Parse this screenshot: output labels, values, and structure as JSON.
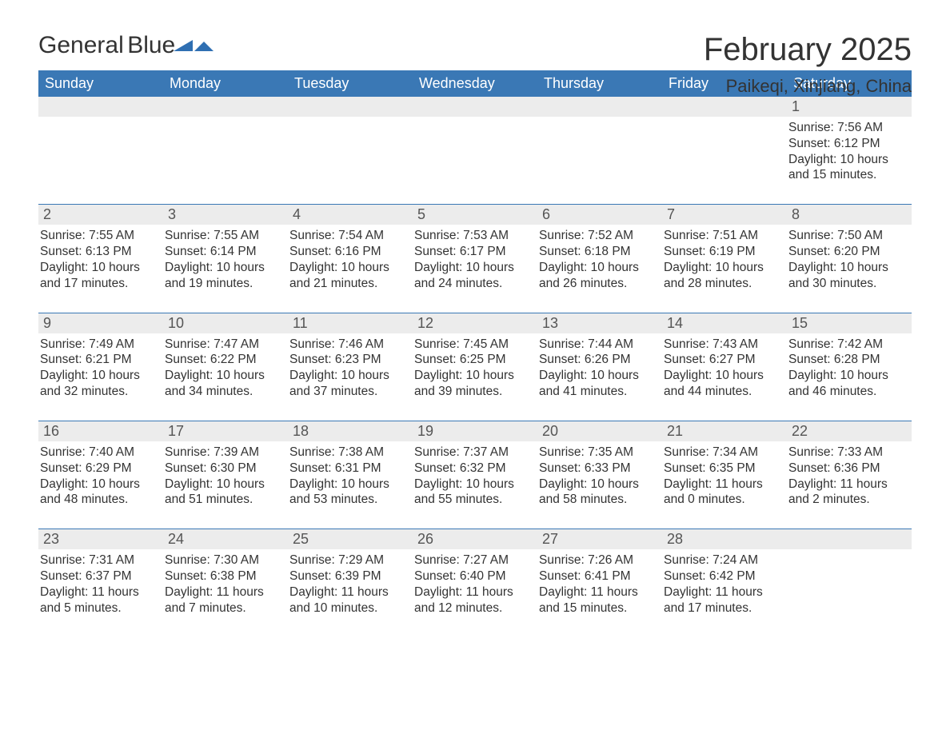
{
  "brand": {
    "general": "General",
    "blue": "Blue"
  },
  "title": "February 2025",
  "location": "Paikeqi, Xinjiang, China",
  "colors": {
    "header_bg": "#3a78b5",
    "header_fg": "#ffffff",
    "daynum_bg": "#ececec",
    "rule": "#3a78b5",
    "logo_blue": "#2f6fb2",
    "text": "#333333"
  },
  "columns": [
    "Sunday",
    "Monday",
    "Tuesday",
    "Wednesday",
    "Thursday",
    "Friday",
    "Saturday"
  ],
  "weeks": [
    {
      "days": [
        null,
        null,
        null,
        null,
        null,
        null,
        {
          "n": "1",
          "sunrise": "Sunrise: 7:56 AM",
          "sunset": "Sunset: 6:12 PM",
          "daylight": "Daylight: 10 hours and 15 minutes."
        }
      ]
    },
    {
      "days": [
        {
          "n": "2",
          "sunrise": "Sunrise: 7:55 AM",
          "sunset": "Sunset: 6:13 PM",
          "daylight": "Daylight: 10 hours and 17 minutes."
        },
        {
          "n": "3",
          "sunrise": "Sunrise: 7:55 AM",
          "sunset": "Sunset: 6:14 PM",
          "daylight": "Daylight: 10 hours and 19 minutes."
        },
        {
          "n": "4",
          "sunrise": "Sunrise: 7:54 AM",
          "sunset": "Sunset: 6:16 PM",
          "daylight": "Daylight: 10 hours and 21 minutes."
        },
        {
          "n": "5",
          "sunrise": "Sunrise: 7:53 AM",
          "sunset": "Sunset: 6:17 PM",
          "daylight": "Daylight: 10 hours and 24 minutes."
        },
        {
          "n": "6",
          "sunrise": "Sunrise: 7:52 AM",
          "sunset": "Sunset: 6:18 PM",
          "daylight": "Daylight: 10 hours and 26 minutes."
        },
        {
          "n": "7",
          "sunrise": "Sunrise: 7:51 AM",
          "sunset": "Sunset: 6:19 PM",
          "daylight": "Daylight: 10 hours and 28 minutes."
        },
        {
          "n": "8",
          "sunrise": "Sunrise: 7:50 AM",
          "sunset": "Sunset: 6:20 PM",
          "daylight": "Daylight: 10 hours and 30 minutes."
        }
      ]
    },
    {
      "days": [
        {
          "n": "9",
          "sunrise": "Sunrise: 7:49 AM",
          "sunset": "Sunset: 6:21 PM",
          "daylight": "Daylight: 10 hours and 32 minutes."
        },
        {
          "n": "10",
          "sunrise": "Sunrise: 7:47 AM",
          "sunset": "Sunset: 6:22 PM",
          "daylight": "Daylight: 10 hours and 34 minutes."
        },
        {
          "n": "11",
          "sunrise": "Sunrise: 7:46 AM",
          "sunset": "Sunset: 6:23 PM",
          "daylight": "Daylight: 10 hours and 37 minutes."
        },
        {
          "n": "12",
          "sunrise": "Sunrise: 7:45 AM",
          "sunset": "Sunset: 6:25 PM",
          "daylight": "Daylight: 10 hours and 39 minutes."
        },
        {
          "n": "13",
          "sunrise": "Sunrise: 7:44 AM",
          "sunset": "Sunset: 6:26 PM",
          "daylight": "Daylight: 10 hours and 41 minutes."
        },
        {
          "n": "14",
          "sunrise": "Sunrise: 7:43 AM",
          "sunset": "Sunset: 6:27 PM",
          "daylight": "Daylight: 10 hours and 44 minutes."
        },
        {
          "n": "15",
          "sunrise": "Sunrise: 7:42 AM",
          "sunset": "Sunset: 6:28 PM",
          "daylight": "Daylight: 10 hours and 46 minutes."
        }
      ]
    },
    {
      "days": [
        {
          "n": "16",
          "sunrise": "Sunrise: 7:40 AM",
          "sunset": "Sunset: 6:29 PM",
          "daylight": "Daylight: 10 hours and 48 minutes."
        },
        {
          "n": "17",
          "sunrise": "Sunrise: 7:39 AM",
          "sunset": "Sunset: 6:30 PM",
          "daylight": "Daylight: 10 hours and 51 minutes."
        },
        {
          "n": "18",
          "sunrise": "Sunrise: 7:38 AM",
          "sunset": "Sunset: 6:31 PM",
          "daylight": "Daylight: 10 hours and 53 minutes."
        },
        {
          "n": "19",
          "sunrise": "Sunrise: 7:37 AM",
          "sunset": "Sunset: 6:32 PM",
          "daylight": "Daylight: 10 hours and 55 minutes."
        },
        {
          "n": "20",
          "sunrise": "Sunrise: 7:35 AM",
          "sunset": "Sunset: 6:33 PM",
          "daylight": "Daylight: 10 hours and 58 minutes."
        },
        {
          "n": "21",
          "sunrise": "Sunrise: 7:34 AM",
          "sunset": "Sunset: 6:35 PM",
          "daylight": "Daylight: 11 hours and 0 minutes."
        },
        {
          "n": "22",
          "sunrise": "Sunrise: 7:33 AM",
          "sunset": "Sunset: 6:36 PM",
          "daylight": "Daylight: 11 hours and 2 minutes."
        }
      ]
    },
    {
      "days": [
        {
          "n": "23",
          "sunrise": "Sunrise: 7:31 AM",
          "sunset": "Sunset: 6:37 PM",
          "daylight": "Daylight: 11 hours and 5 minutes."
        },
        {
          "n": "24",
          "sunrise": "Sunrise: 7:30 AM",
          "sunset": "Sunset: 6:38 PM",
          "daylight": "Daylight: 11 hours and 7 minutes."
        },
        {
          "n": "25",
          "sunrise": "Sunrise: 7:29 AM",
          "sunset": "Sunset: 6:39 PM",
          "daylight": "Daylight: 11 hours and 10 minutes."
        },
        {
          "n": "26",
          "sunrise": "Sunrise: 7:27 AM",
          "sunset": "Sunset: 6:40 PM",
          "daylight": "Daylight: 11 hours and 12 minutes."
        },
        {
          "n": "27",
          "sunrise": "Sunrise: 7:26 AM",
          "sunset": "Sunset: 6:41 PM",
          "daylight": "Daylight: 11 hours and 15 minutes."
        },
        {
          "n": "28",
          "sunrise": "Sunrise: 7:24 AM",
          "sunset": "Sunset: 6:42 PM",
          "daylight": "Daylight: 11 hours and 17 minutes."
        },
        null
      ]
    }
  ]
}
